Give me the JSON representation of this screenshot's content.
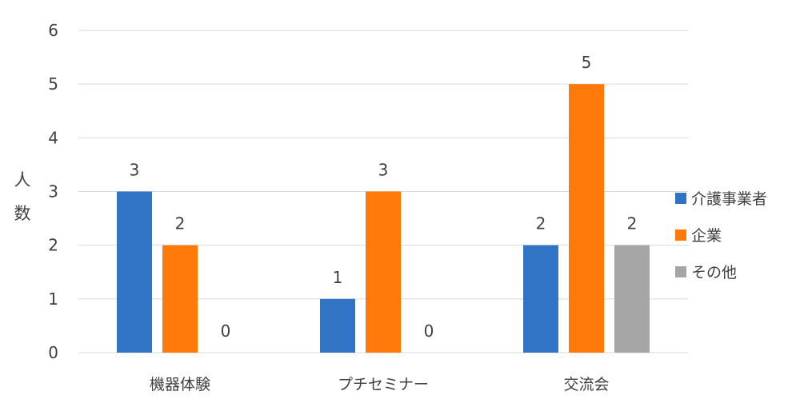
{
  "chart_data": {
    "type": "bar",
    "title": "",
    "xlabel": "",
    "ylabel": [
      "人",
      "数"
    ],
    "ylim": [
      0,
      6
    ],
    "yticks": [
      "0",
      "1",
      "2",
      "3",
      "4",
      "5",
      "6"
    ],
    "grid": true,
    "legend_position": "right",
    "categories": [
      "機器体験",
      "プチセミナー",
      "交流会"
    ],
    "series": [
      {
        "name": "介護事業者",
        "color": "#3174c6",
        "values": [
          3,
          1,
          2
        ]
      },
      {
        "name": "企業",
        "color": "#ff7a0a",
        "values": [
          2,
          3,
          5
        ]
      },
      {
        "name": "その他",
        "color": "#a5a5a5",
        "values": [
          0,
          0,
          2
        ]
      }
    ]
  }
}
